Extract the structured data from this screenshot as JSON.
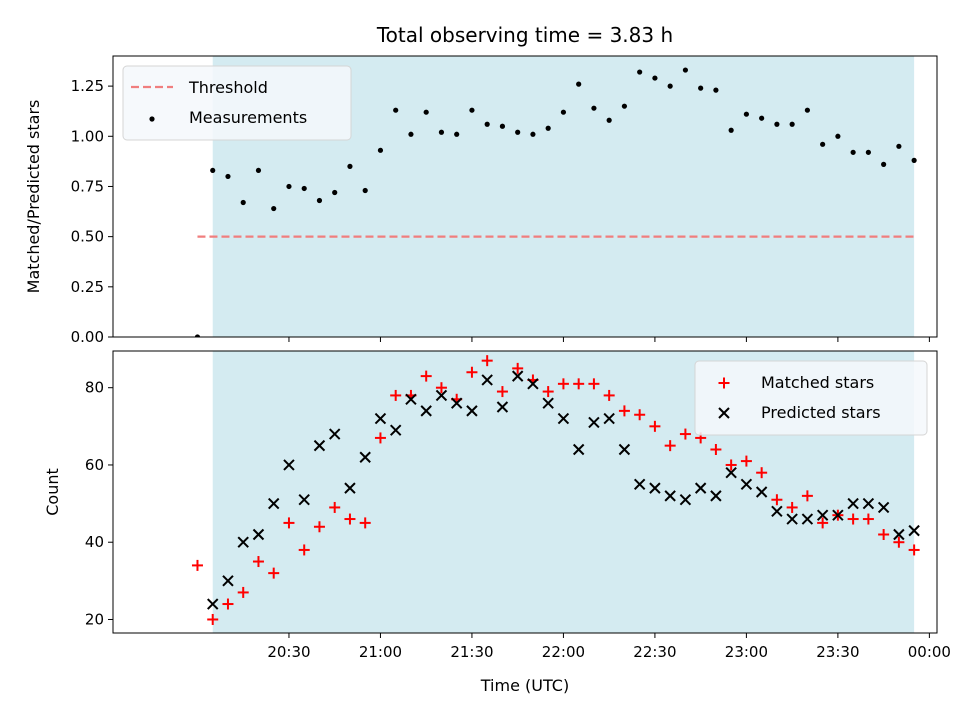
{
  "title": "Total observing time = 3.83 h",
  "colors": {
    "observing_window": "#d4ebf1",
    "threshold_line": "#f07e7e",
    "measurement": "#000000",
    "matched": "#ff0000",
    "predicted": "#000000",
    "legend_bg": "#f5f8fb",
    "legend_border": "#d5d5d5"
  },
  "xaxis": {
    "label": "Time (UTC)",
    "tick_values_min": [
      30,
      60,
      90,
      120,
      150,
      180,
      210,
      240
    ],
    "tick_labels": [
      "20:30",
      "21:00",
      "21:30",
      "22:00",
      "22:30",
      "23:00",
      "23:30",
      "00:00"
    ],
    "range_min": [
      -27.7,
      242.5
    ]
  },
  "chart_data": [
    {
      "type": "scatter",
      "panel": "top",
      "ylabel": "Matched/Predicted stars",
      "ylim": [
        0,
        1.4
      ],
      "yticks": [
        0.0,
        0.25,
        0.5,
        0.75,
        1.0,
        1.25
      ],
      "ytick_labels": [
        "0.00",
        "0.25",
        "0.50",
        "0.75",
        "1.00",
        "1.25"
      ],
      "observing_window_min": [
        5,
        235
      ],
      "legend": {
        "placement": "upper left",
        "entries": [
          "Threshold",
          "Measurements"
        ]
      },
      "threshold": {
        "name": "Threshold",
        "value": 0.5,
        "x_range_min": [
          0,
          235
        ],
        "style": "dashed"
      },
      "series": [
        {
          "name": "Measurements",
          "x_min": [
            0,
            5,
            10,
            15,
            20,
            25,
            30,
            35,
            40,
            45,
            50,
            55,
            60,
            65,
            70,
            75,
            80,
            85,
            90,
            95,
            100,
            105,
            110,
            115,
            120,
            125,
            130,
            135,
            140,
            145,
            150,
            155,
            160,
            165,
            170,
            175,
            180,
            185,
            190,
            195,
            200,
            205,
            210,
            215,
            220,
            225,
            230,
            235
          ],
          "y": [
            0.0,
            0.83,
            0.8,
            0.67,
            0.83,
            0.64,
            0.75,
            0.74,
            0.68,
            0.72,
            0.85,
            0.73,
            0.93,
            1.13,
            1.01,
            1.12,
            1.02,
            1.01,
            1.13,
            1.06,
            1.05,
            1.02,
            1.01,
            1.04,
            1.12,
            1.26,
            1.14,
            1.08,
            1.15,
            1.32,
            1.29,
            1.25,
            1.33,
            1.24,
            1.23,
            1.03,
            1.11,
            1.09,
            1.06,
            1.06,
            1.13,
            0.96,
            1.0,
            0.92,
            0.92,
            0.86,
            0.95,
            0.88
          ]
        }
      ]
    },
    {
      "type": "scatter",
      "panel": "bottom",
      "ylabel": "Count",
      "ylim": [
        16.5,
        89.5
      ],
      "yticks": [
        20,
        40,
        60,
        80
      ],
      "ytick_labels": [
        "20",
        "40",
        "60",
        "80"
      ],
      "observing_window_min": [
        5,
        235
      ],
      "legend": {
        "placement": "upper right",
        "entries": [
          "Matched stars",
          "Predicted stars"
        ]
      },
      "series": [
        {
          "name": "Matched stars",
          "marker": "plus",
          "x_min": [
            0,
            5,
            10,
            15,
            20,
            25,
            30,
            35,
            40,
            45,
            50,
            55,
            60,
            65,
            70,
            75,
            80,
            85,
            90,
            95,
            100,
            105,
            110,
            115,
            120,
            125,
            130,
            135,
            140,
            145,
            150,
            155,
            160,
            165,
            170,
            175,
            180,
            185,
            190,
            195,
            200,
            205,
            210,
            215,
            220,
            225,
            230,
            235
          ],
          "y": [
            34,
            20,
            24,
            27,
            35,
            32,
            45,
            38,
            44,
            49,
            46,
            45,
            67,
            78,
            78,
            83,
            80,
            77,
            84,
            87,
            79,
            85,
            82,
            79,
            81,
            81,
            81,
            78,
            74,
            73,
            70,
            65,
            68,
            67,
            64,
            60,
            61,
            58,
            51,
            49,
            52,
            45,
            47,
            46,
            46,
            42,
            40,
            38
          ]
        },
        {
          "name": "Predicted stars",
          "marker": "cross",
          "x_min": [
            5,
            10,
            15,
            20,
            25,
            30,
            35,
            40,
            45,
            50,
            55,
            60,
            65,
            70,
            75,
            80,
            85,
            90,
            95,
            100,
            105,
            110,
            115,
            120,
            125,
            130,
            135,
            140,
            145,
            150,
            155,
            160,
            165,
            170,
            175,
            180,
            185,
            190,
            195,
            200,
            205,
            210,
            215,
            220,
            225,
            230,
            235
          ],
          "y": [
            24,
            30,
            40,
            42,
            50,
            60,
            51,
            65,
            68,
            54,
            62,
            72,
            69,
            77,
            74,
            78,
            76,
            74,
            82,
            75,
            83,
            81,
            76,
            72,
            64,
            71,
            72,
            64,
            55,
            54,
            52,
            51,
            54,
            52,
            58,
            55,
            53,
            48,
            46,
            46,
            47,
            47,
            50,
            50,
            49,
            42,
            43
          ]
        }
      ]
    }
  ]
}
